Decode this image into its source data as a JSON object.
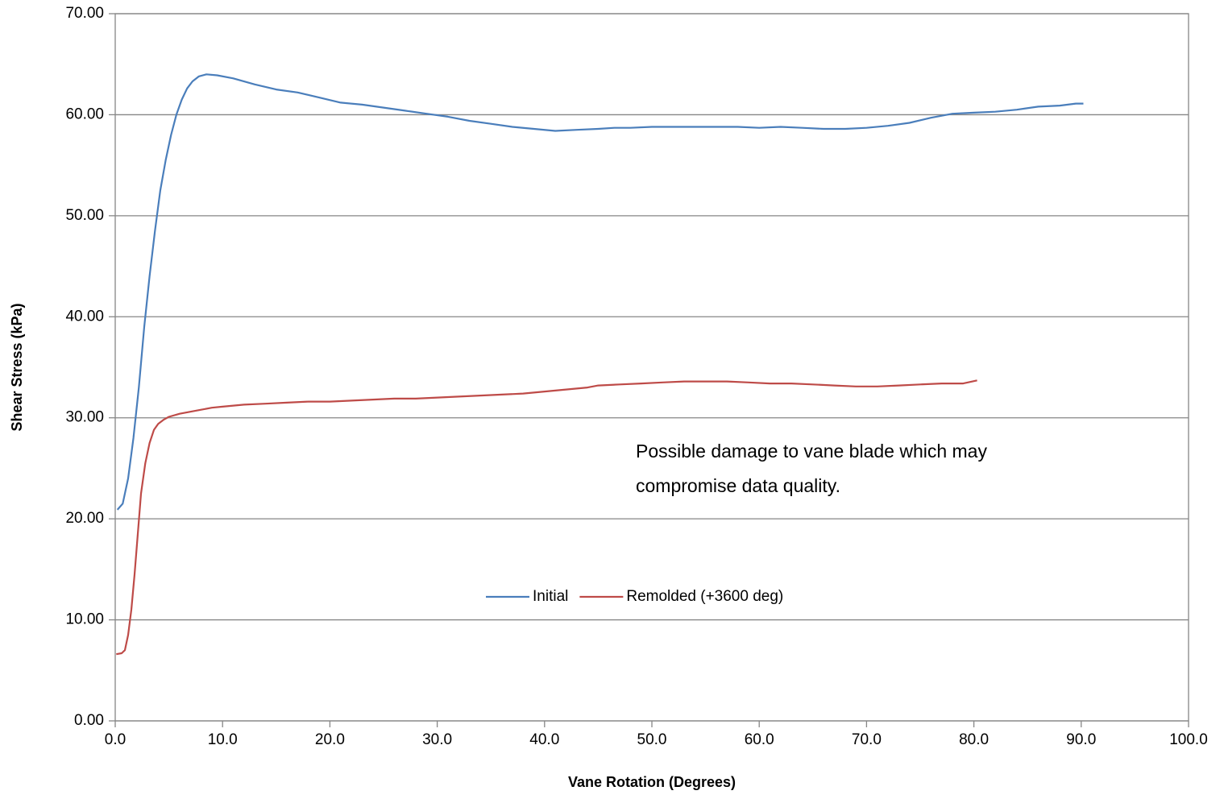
{
  "chart_data": {
    "type": "line",
    "x_label": "Vane Rotation (Degrees)",
    "y_label": "Shear Stress (kPa)",
    "annotation": [
      "Possible damage to vane blade which may",
      "compromise data quality."
    ],
    "xlim": [
      0,
      100
    ],
    "ylim": [
      0,
      70
    ],
    "xticks": [
      {
        "value": 0,
        "label": "0.0"
      },
      {
        "value": 10,
        "label": "10.0"
      },
      {
        "value": 20,
        "label": "20.0"
      },
      {
        "value": 30,
        "label": "30.0"
      },
      {
        "value": 40,
        "label": "40.0"
      },
      {
        "value": 50,
        "label": "50.0"
      },
      {
        "value": 60,
        "label": "60.0"
      },
      {
        "value": 70,
        "label": "70.0"
      },
      {
        "value": 80,
        "label": "80.0"
      },
      {
        "value": 90,
        "label": "90.0"
      },
      {
        "value": 100,
        "label": "100.0"
      }
    ],
    "yticks": [
      {
        "value": 0,
        "label": "0.00"
      },
      {
        "value": 10,
        "label": "10.00"
      },
      {
        "value": 20,
        "label": "20.00"
      },
      {
        "value": 30,
        "label": "30.00"
      },
      {
        "value": 40,
        "label": "40.00"
      },
      {
        "value": 50,
        "label": "50.00"
      },
      {
        "value": 60,
        "label": "60.00"
      },
      {
        "value": 70,
        "label": "70.00"
      }
    ],
    "grid": true,
    "legend": "center",
    "series": [
      {
        "name": "Initial",
        "color": "#4a7ebb",
        "x": [
          0.2,
          0.7,
          1.2,
          1.7,
          2.2,
          2.7,
          3.2,
          3.7,
          4.2,
          4.7,
          5.2,
          5.7,
          6.2,
          6.7,
          7.2,
          7.8,
          8.5,
          9.5,
          11,
          13,
          15,
          17,
          19,
          21,
          23,
          25,
          27,
          29,
          31,
          33,
          35,
          37,
          39,
          41,
          43,
          45,
          46.5,
          48,
          50,
          52,
          54,
          56,
          58,
          60,
          62,
          64,
          66,
          68,
          70,
          72,
          74,
          76,
          78,
          80,
          82,
          84,
          86,
          88,
          89.5,
          90.2
        ],
        "values": [
          20.9,
          21.5,
          24,
          28,
          33,
          39,
          44,
          48.5,
          52.5,
          55.5,
          58,
          60,
          61.5,
          62.6,
          63.3,
          63.8,
          64.0,
          63.9,
          63.6,
          63.0,
          62.5,
          62.2,
          61.7,
          61.2,
          61.0,
          60.7,
          60.4,
          60.1,
          59.8,
          59.4,
          59.1,
          58.8,
          58.6,
          58.4,
          58.5,
          58.6,
          58.7,
          58.7,
          58.8,
          58.8,
          58.8,
          58.8,
          58.8,
          58.7,
          58.8,
          58.7,
          58.6,
          58.6,
          58.7,
          58.9,
          59.2,
          59.7,
          60.1,
          60.2,
          60.3,
          60.5,
          60.8,
          60.9,
          61.1,
          61.1
        ]
      },
      {
        "name": "Remolded (+3600 deg)",
        "color": "#be4b48",
        "x": [
          0.1,
          0.6,
          0.9,
          1.2,
          1.5,
          1.8,
          2.1,
          2.4,
          2.8,
          3.2,
          3.6,
          4.0,
          4.5,
          5,
          6,
          7,
          8,
          9,
          10,
          12,
          14,
          16,
          18,
          20,
          22,
          24,
          26,
          28,
          30,
          32,
          34,
          36,
          38,
          40,
          42,
          44,
          45,
          47,
          49,
          51,
          53,
          55,
          57,
          59,
          61,
          63,
          65,
          67,
          69,
          71,
          73,
          75,
          77,
          79,
          80.3
        ],
        "values": [
          6.6,
          6.7,
          7,
          8.5,
          11,
          14.5,
          18.5,
          22.5,
          25.5,
          27.5,
          28.8,
          29.4,
          29.8,
          30.1,
          30.4,
          30.6,
          30.8,
          31.0,
          31.1,
          31.3,
          31.4,
          31.5,
          31.6,
          31.6,
          31.7,
          31.8,
          31.9,
          31.9,
          32.0,
          32.1,
          32.2,
          32.3,
          32.4,
          32.6,
          32.8,
          33.0,
          33.2,
          33.3,
          33.4,
          33.5,
          33.6,
          33.6,
          33.6,
          33.5,
          33.4,
          33.4,
          33.3,
          33.2,
          33.1,
          33.1,
          33.2,
          33.3,
          33.4,
          33.4,
          33.7
        ]
      }
    ]
  }
}
